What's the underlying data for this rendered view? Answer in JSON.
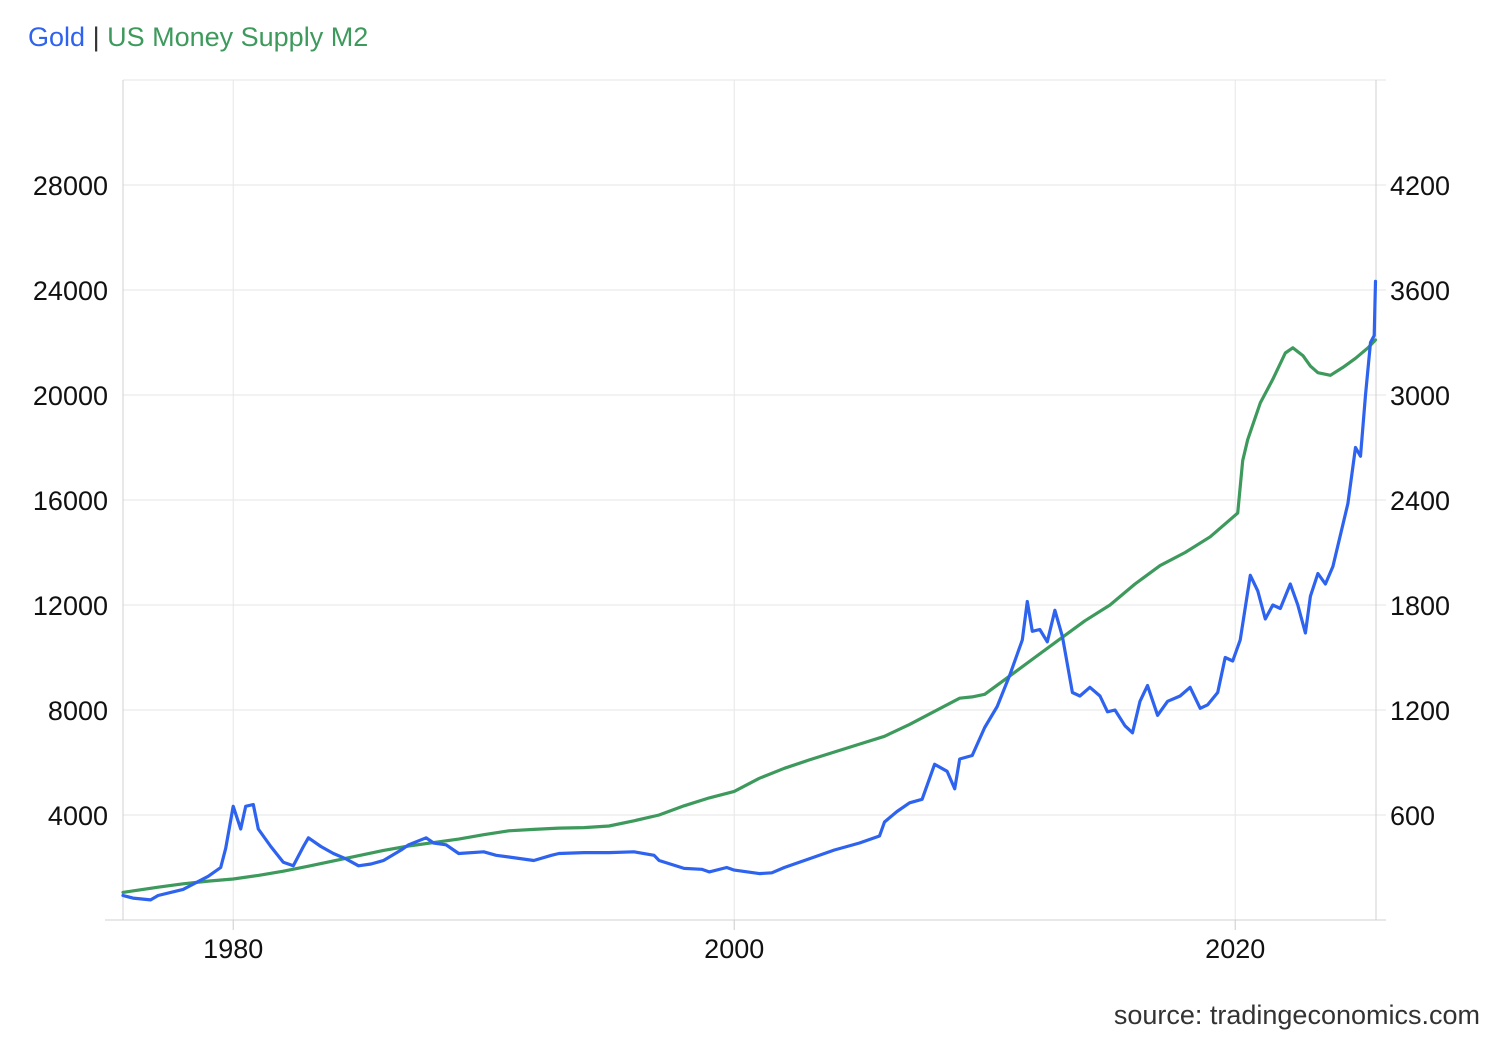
{
  "legend": {
    "series1": "Gold",
    "separator": "|",
    "series2": "US Money Supply M2",
    "series1_color": "#2e63f0",
    "series2_color": "#3d9a5c"
  },
  "source": "source: tradingeconomics.com",
  "chart_data": {
    "type": "line",
    "x_axis": {
      "ticks": [
        1980,
        2000,
        2020
      ],
      "range": [
        1975.6,
        2025.6
      ],
      "grid": true
    },
    "y_left": {
      "label": "",
      "ticks": [
        4000,
        8000,
        12000,
        16000,
        20000,
        24000,
        28000
      ],
      "range": [
        0,
        32000
      ],
      "grid": true
    },
    "y_right": {
      "label": "",
      "ticks": [
        600,
        1200,
        1800,
        2400,
        3000,
        3600,
        4200
      ],
      "range": [
        0,
        4800
      ]
    },
    "series": [
      {
        "name": "US Money Supply M2",
        "axis": "left",
        "color": "#3d9a5c",
        "points": [
          [
            1975.6,
            1050
          ],
          [
            1977,
            1250
          ],
          [
            1978,
            1380
          ],
          [
            1979,
            1480
          ],
          [
            1980,
            1560
          ],
          [
            1981,
            1700
          ],
          [
            1982,
            1860
          ],
          [
            1983,
            2050
          ],
          [
            1984,
            2250
          ],
          [
            1985,
            2450
          ],
          [
            1986,
            2650
          ],
          [
            1987,
            2820
          ],
          [
            1988,
            2950
          ],
          [
            1989,
            3080
          ],
          [
            1990,
            3250
          ],
          [
            1991,
            3400
          ],
          [
            1992,
            3450
          ],
          [
            1993,
            3500
          ],
          [
            1994,
            3520
          ],
          [
            1995,
            3580
          ],
          [
            1996,
            3780
          ],
          [
            1997,
            4000
          ],
          [
            1998,
            4350
          ],
          [
            1999,
            4650
          ],
          [
            2000,
            4900
          ],
          [
            2001,
            5400
          ],
          [
            2002,
            5780
          ],
          [
            2003,
            6100
          ],
          [
            2004,
            6400
          ],
          [
            2005,
            6700
          ],
          [
            2006,
            7000
          ],
          [
            2007,
            7450
          ],
          [
            2008,
            7950
          ],
          [
            2009,
            8450
          ],
          [
            2009.5,
            8500
          ],
          [
            2010,
            8600
          ],
          [
            2011,
            9300
          ],
          [
            2012,
            10000
          ],
          [
            2013,
            10700
          ],
          [
            2014,
            11400
          ],
          [
            2015,
            12000
          ],
          [
            2016,
            12800
          ],
          [
            2017,
            13500
          ],
          [
            2018,
            14000
          ],
          [
            2019,
            14600
          ],
          [
            2020.1,
            15500
          ],
          [
            2020.3,
            17500
          ],
          [
            2020.5,
            18300
          ],
          [
            2021,
            19700
          ],
          [
            2021.5,
            20600
          ],
          [
            2022,
            21600
          ],
          [
            2022.3,
            21800
          ],
          [
            2022.7,
            21500
          ],
          [
            2023,
            21100
          ],
          [
            2023.3,
            20850
          ],
          [
            2023.8,
            20750
          ],
          [
            2024.3,
            21050
          ],
          [
            2024.8,
            21400
          ],
          [
            2025.3,
            21800
          ],
          [
            2025.6,
            22100
          ]
        ]
      },
      {
        "name": "Gold",
        "axis": "right",
        "color": "#2e63f0",
        "points": [
          [
            1975.6,
            140
          ],
          [
            1976,
            125
          ],
          [
            1976.7,
            115
          ],
          [
            1977,
            140
          ],
          [
            1978,
            175
          ],
          [
            1979,
            250
          ],
          [
            1979.5,
            300
          ],
          [
            1979.7,
            410
          ],
          [
            1980,
            650
          ],
          [
            1980.3,
            520
          ],
          [
            1980.5,
            650
          ],
          [
            1980.8,
            660
          ],
          [
            1981,
            520
          ],
          [
            1981.5,
            420
          ],
          [
            1982,
            330
          ],
          [
            1982.4,
            310
          ],
          [
            1982.8,
            420
          ],
          [
            1983,
            470
          ],
          [
            1983.5,
            420
          ],
          [
            1984,
            380
          ],
          [
            1984.5,
            350
          ],
          [
            1985,
            310
          ],
          [
            1985.5,
            320
          ],
          [
            1986,
            340
          ],
          [
            1986.7,
            400
          ],
          [
            1987,
            430
          ],
          [
            1987.7,
            470
          ],
          [
            1988,
            440
          ],
          [
            1988.5,
            430
          ],
          [
            1989,
            380
          ],
          [
            1990,
            390
          ],
          [
            1990.5,
            370
          ],
          [
            1991,
            360
          ],
          [
            1992,
            340
          ],
          [
            1992.7,
            370
          ],
          [
            1993,
            380
          ],
          [
            1994,
            385
          ],
          [
            1995,
            385
          ],
          [
            1996,
            390
          ],
          [
            1996.8,
            370
          ],
          [
            1997,
            340
          ],
          [
            1998,
            295
          ],
          [
            1998.7,
            290
          ],
          [
            1999,
            275
          ],
          [
            1999.7,
            300
          ],
          [
            2000,
            285
          ],
          [
            2001,
            265
          ],
          [
            2001.5,
            270
          ],
          [
            2002,
            300
          ],
          [
            2003,
            350
          ],
          [
            2004,
            400
          ],
          [
            2005,
            440
          ],
          [
            2005.8,
            480
          ],
          [
            2006,
            560
          ],
          [
            2006.5,
            620
          ],
          [
            2007,
            670
          ],
          [
            2007.5,
            690
          ],
          [
            2008,
            890
          ],
          [
            2008.5,
            850
          ],
          [
            2008.8,
            750
          ],
          [
            2009,
            920
          ],
          [
            2009.5,
            940
          ],
          [
            2010,
            1100
          ],
          [
            2010.5,
            1220
          ],
          [
            2011,
            1400
          ],
          [
            2011.5,
            1600
          ],
          [
            2011.7,
            1820
          ],
          [
            2011.9,
            1650
          ],
          [
            2012.2,
            1660
          ],
          [
            2012.5,
            1590
          ],
          [
            2012.8,
            1770
          ],
          [
            2013.1,
            1620
          ],
          [
            2013.5,
            1300
          ],
          [
            2013.8,
            1280
          ],
          [
            2014.2,
            1330
          ],
          [
            2014.6,
            1280
          ],
          [
            2014.9,
            1190
          ],
          [
            2015.2,
            1200
          ],
          [
            2015.6,
            1110
          ],
          [
            2015.9,
            1070
          ],
          [
            2016.2,
            1250
          ],
          [
            2016.5,
            1340
          ],
          [
            2016.9,
            1170
          ],
          [
            2017.3,
            1250
          ],
          [
            2017.8,
            1280
          ],
          [
            2018.2,
            1330
          ],
          [
            2018.6,
            1210
          ],
          [
            2018.9,
            1230
          ],
          [
            2019.3,
            1300
          ],
          [
            2019.6,
            1500
          ],
          [
            2019.9,
            1480
          ],
          [
            2020.2,
            1600
          ],
          [
            2020.6,
            1970
          ],
          [
            2020.9,
            1880
          ],
          [
            2021.2,
            1720
          ],
          [
            2021.5,
            1800
          ],
          [
            2021.8,
            1780
          ],
          [
            2022.2,
            1920
          ],
          [
            2022.5,
            1800
          ],
          [
            2022.8,
            1640
          ],
          [
            2023,
            1850
          ],
          [
            2023.3,
            1980
          ],
          [
            2023.6,
            1920
          ],
          [
            2023.9,
            2020
          ],
          [
            2024.2,
            2200
          ],
          [
            2024.5,
            2380
          ],
          [
            2024.8,
            2700
          ],
          [
            2025.0,
            2650
          ],
          [
            2025.2,
            3000
          ],
          [
            2025.4,
            3300
          ],
          [
            2025.55,
            3340
          ],
          [
            2025.6,
            3650
          ]
        ]
      }
    ]
  }
}
